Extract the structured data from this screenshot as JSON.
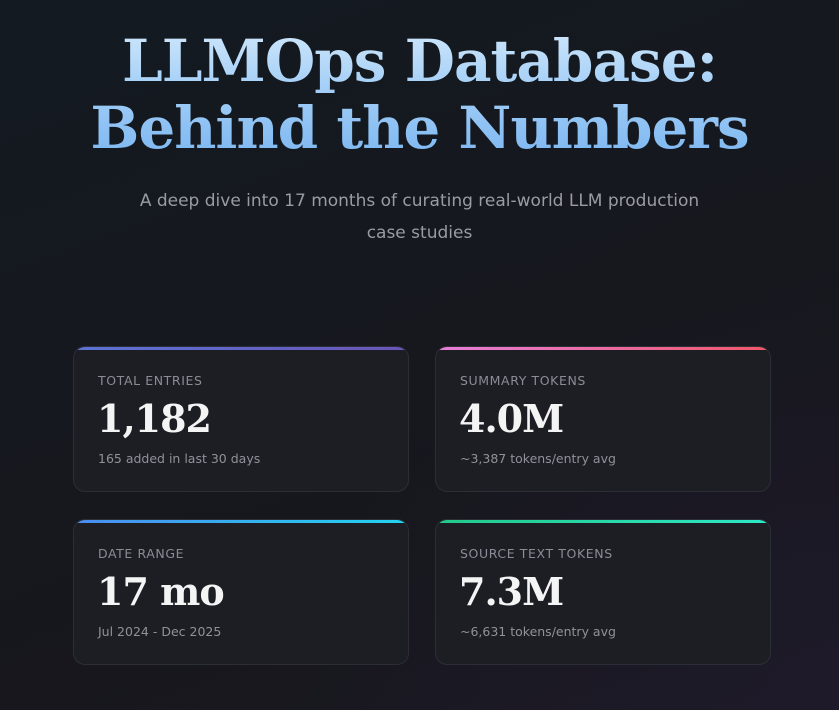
{
  "header": {
    "title_line1": "LLMOps Database:",
    "title_line2": "Behind the Numbers",
    "subtitle": "A deep dive into 17 months of curating real-world LLM production case studies"
  },
  "stats": {
    "total_entries": {
      "label": "TOTAL ENTRIES",
      "value": "1,182",
      "note": "165 added in last 30 days",
      "accent": [
        "#5b73d6",
        "#6a55b8"
      ]
    },
    "summary_tokens": {
      "label": "SUMMARY TOKENS",
      "value": "4.0M",
      "note": "~3,387 tokens/entry avg",
      "accent": [
        "#e77fd9",
        "#f0576a"
      ]
    },
    "date_range": {
      "label": "DATE RANGE",
      "value": "17 mo",
      "note": "Jul 2024 - Dec 2025",
      "accent": [
        "#4a8df0",
        "#22d3f0"
      ]
    },
    "source_text_tokens": {
      "label": "SOURCE TEXT TOKENS",
      "value": "7.3M",
      "note": "~6,631 tokens/entry avg",
      "accent": [
        "#22c98a",
        "#2ee8c6"
      ]
    }
  }
}
